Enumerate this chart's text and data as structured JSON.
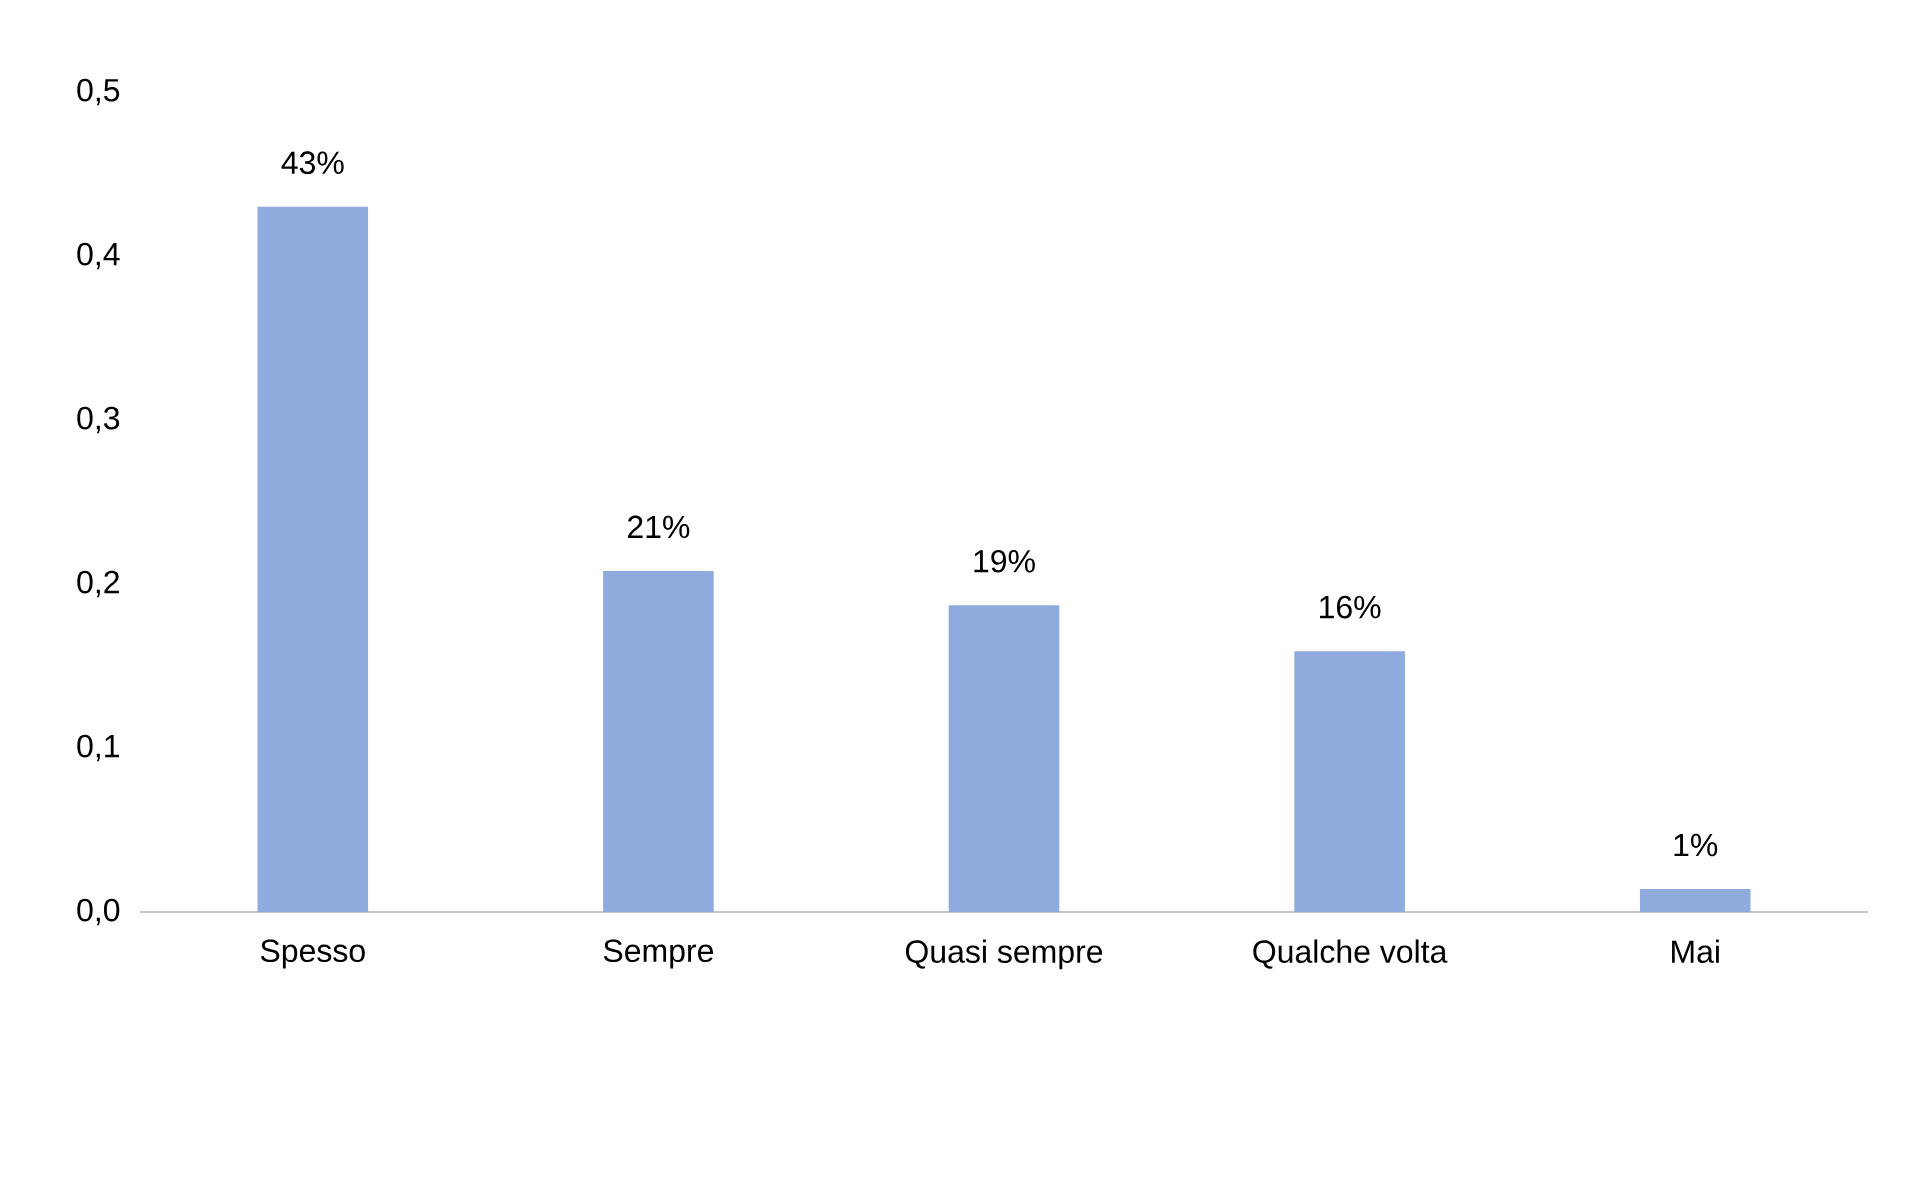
{
  "chart_data": {
    "type": "bar",
    "categories": [
      "Spesso",
      "Sempre",
      "Quasi sempre",
      "Qualche volta",
      "Mai"
    ],
    "values": [
      0.43,
      0.208,
      0.187,
      0.159,
      0.014
    ],
    "value_labels": [
      "43%",
      "21%",
      "19%",
      "16%",
      "1%"
    ],
    "color": "#8faadc",
    "ylim": [
      0,
      0.5
    ],
    "yticks": [
      {
        "value": 0,
        "label": "0,0"
      },
      {
        "value": 0.1,
        "label": "0,1"
      },
      {
        "value": 0.2,
        "label": "0,2"
      },
      {
        "value": 0.3,
        "label": "0,3"
      },
      {
        "value": 0.4,
        "label": "0,4"
      },
      {
        "value": 0.5,
        "label": "0,5"
      }
    ],
    "grid": false
  }
}
